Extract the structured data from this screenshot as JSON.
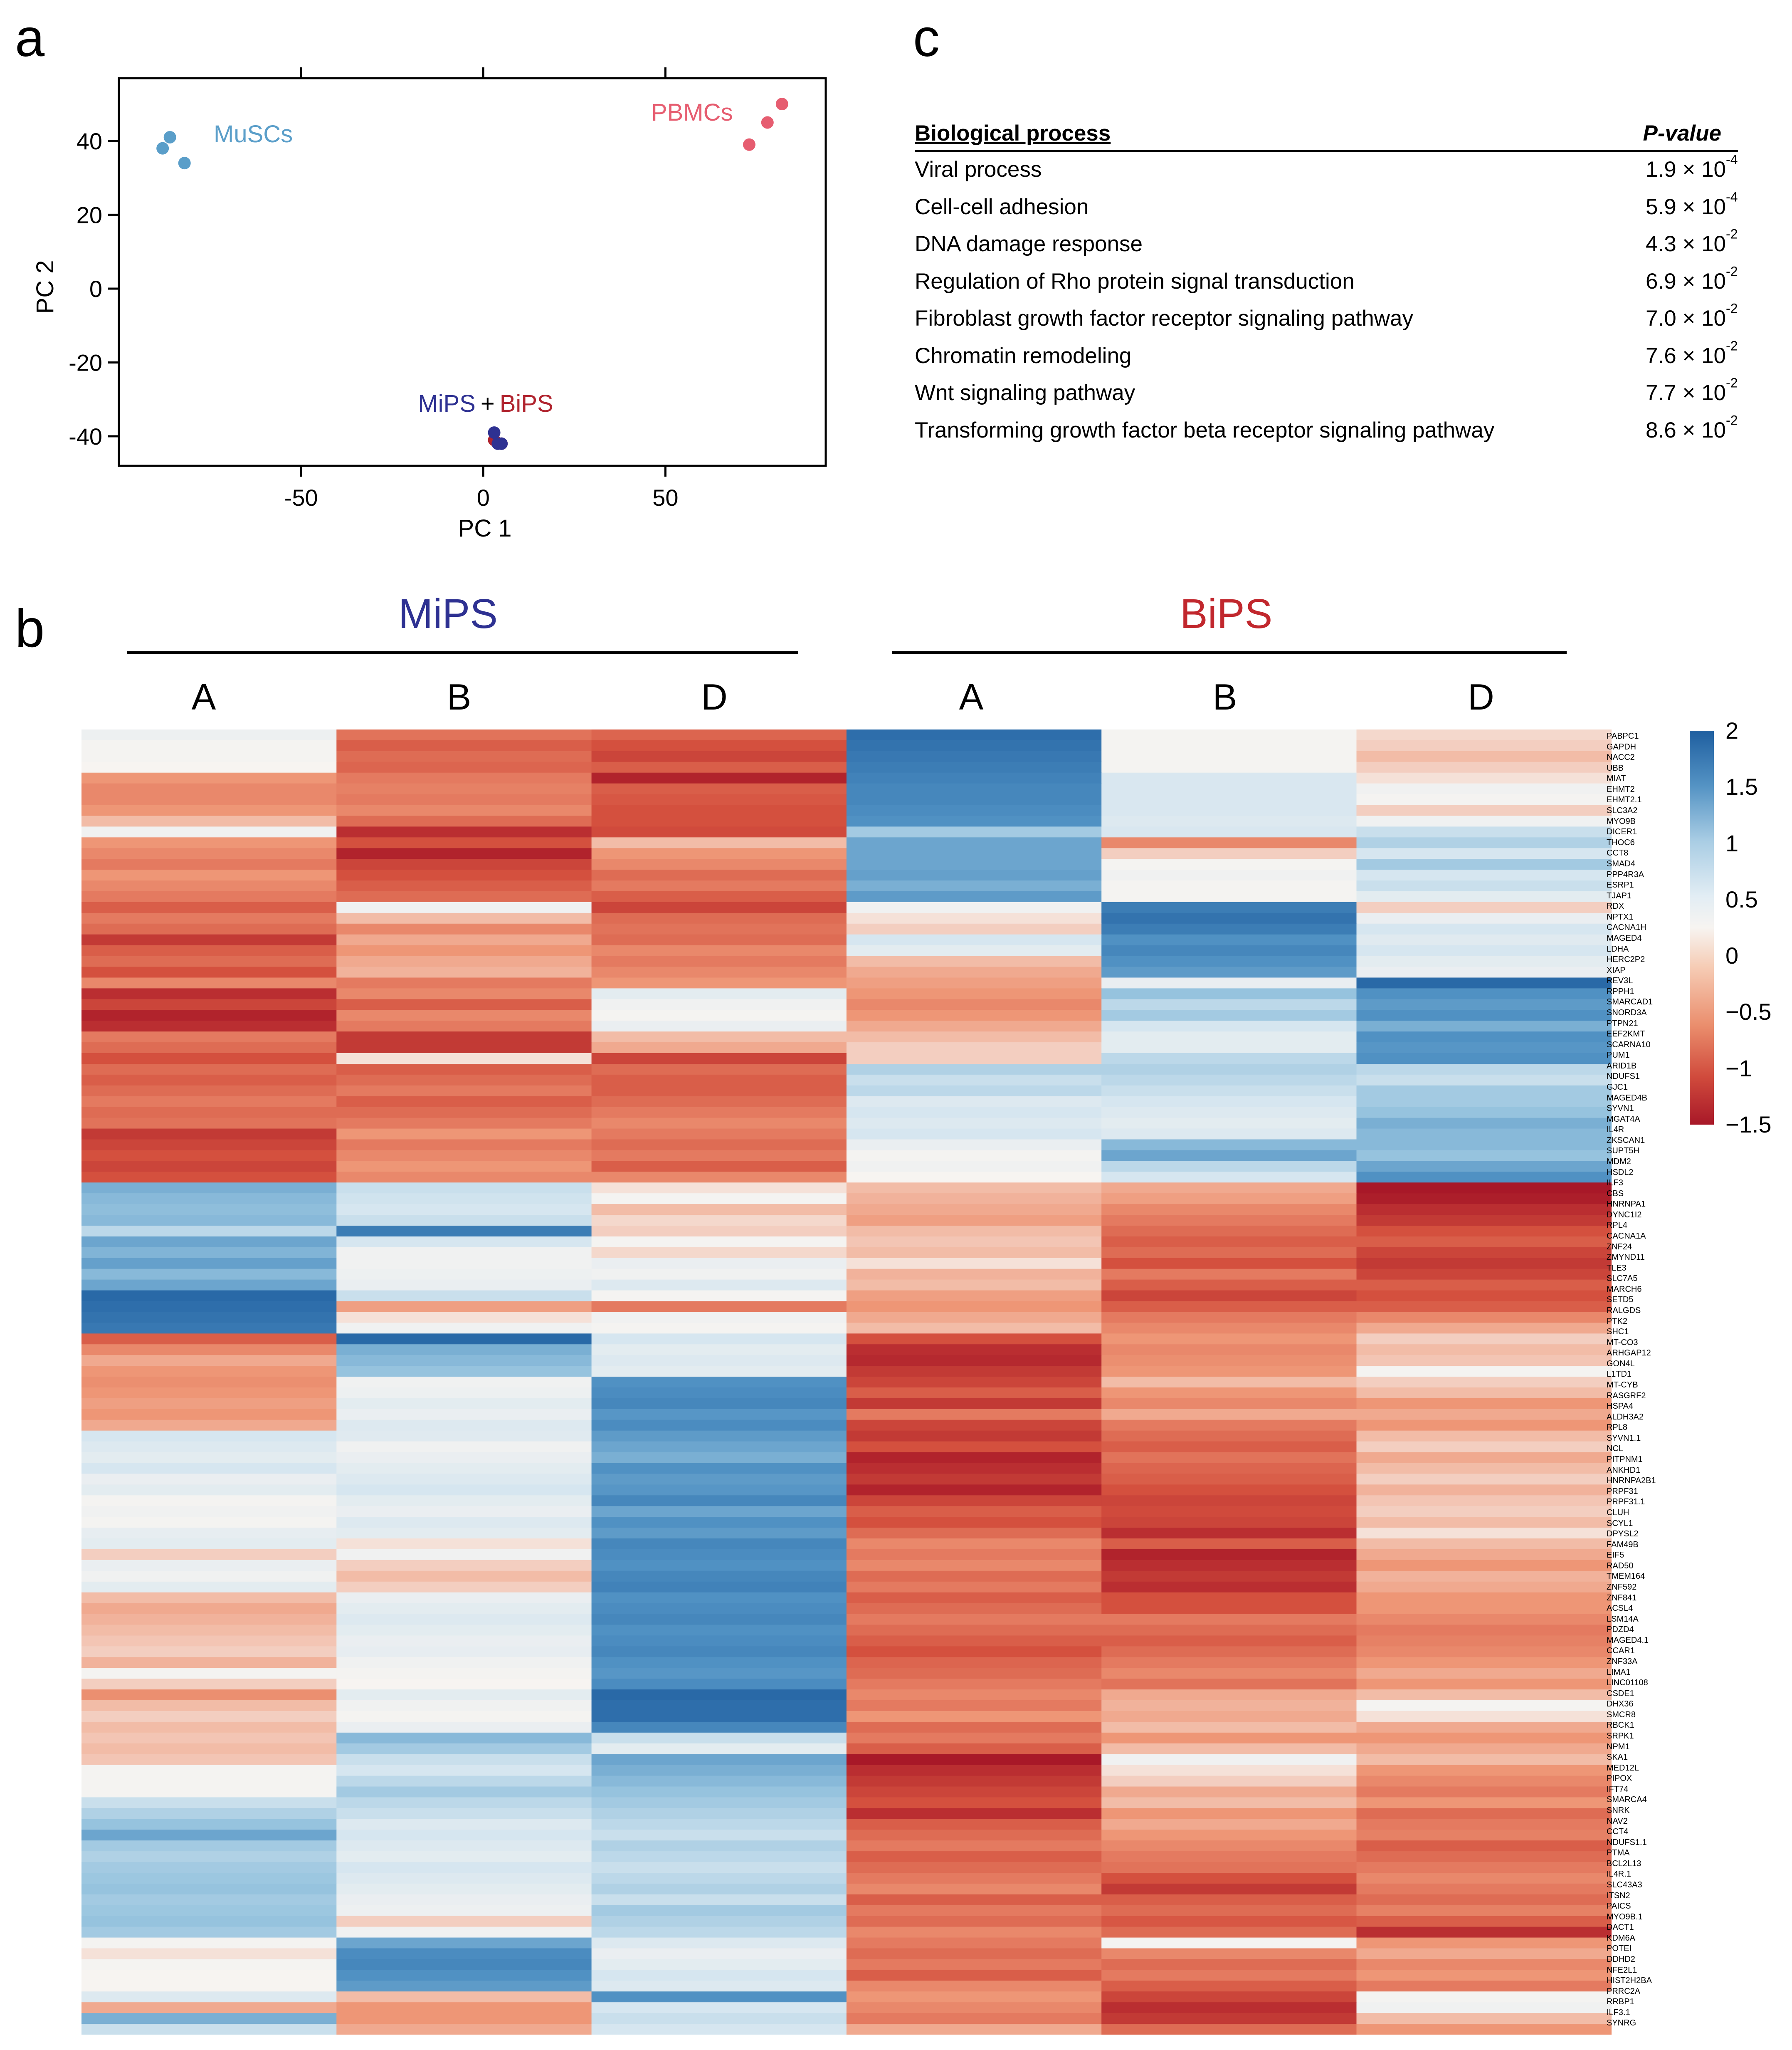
{
  "panels": {
    "a": "a",
    "b": "b",
    "c": "c"
  },
  "pca": {
    "chart_data": {
      "type": "scatter",
      "xlabel": "PC 1",
      "ylabel": "PC 2",
      "xlim": [
        -100,
        94
      ],
      "ylim": [
        -48,
        57
      ],
      "xticks": [
        -50,
        0,
        50
      ],
      "yticks": [
        40,
        20,
        0,
        -20,
        -40
      ],
      "series": [
        {
          "name": "MuSCs",
          "color": "#5a9ec9",
          "points": [
            [
              -88,
              38
            ],
            [
              -86,
              41
            ],
            [
              -82,
              34
            ]
          ]
        },
        {
          "name": "PBMCs",
          "color": "#e65d70",
          "points": [
            [
              73,
              39
            ],
            [
              78,
              45
            ],
            [
              82,
              50
            ]
          ]
        },
        {
          "name": "BiPS",
          "color": "#b0232e",
          "points": [
            [
              3,
              -41
            ],
            [
              5,
              -42
            ]
          ]
        },
        {
          "name": "MiPS",
          "color": "#2e3192",
          "points": [
            [
              3,
              -39
            ],
            [
              4,
              -42
            ],
            [
              5,
              -42
            ]
          ]
        }
      ],
      "annotations": {
        "musc": "MuSCs",
        "pbmc": "PBMCs",
        "mips": "MiPS",
        "plus": "+",
        "bips": "BiPS"
      }
    }
  },
  "go_table": {
    "header_process": "Biological process",
    "header_pvalue": "P-value",
    "rows": [
      {
        "name": "Viral process",
        "mant": "1.9 × 10",
        "exp": "-4"
      },
      {
        "name": "Cell-cell adhesion",
        "mant": "5.9 × 10",
        "exp": "-4"
      },
      {
        "name": "DNA damage response",
        "mant": "4.3 × 10",
        "exp": "-2"
      },
      {
        "name": "Regulation of Rho protein signal transduction",
        "mant": "6.9 × 10",
        "exp": "-2"
      },
      {
        "name": "Fibroblast growth factor receptor signaling pathway",
        "mant": "7.0 × 10",
        "exp": "-2"
      },
      {
        "name": "Chromatin remodeling",
        "mant": "7.6 × 10",
        "exp": "-2"
      },
      {
        "name": "Wnt signaling pathway",
        "mant": "7.7 × 10",
        "exp": "-2"
      },
      {
        "name": "Transforming growth factor beta receptor signaling pathway",
        "mant": "8.6 × 10",
        "exp": "-2"
      }
    ]
  },
  "heatmap": {
    "groups": [
      {
        "name": "MiPS",
        "color": "#2e3192"
      },
      {
        "name": "BiPS",
        "color": "#c1272d"
      }
    ],
    "columns": [
      "A",
      "B",
      "D",
      "A",
      "B",
      "D"
    ],
    "colorbar_ticks": [
      "2",
      "1.5",
      "1",
      "0.5",
      "0",
      "−0.5",
      "−1",
      "−1.5"
    ],
    "chart_data": {
      "type": "heatmap",
      "value_range": [
        -1.5,
        2
      ],
      "genes": [
        "PABPC1",
        "GAPDH",
        "NACC2",
        "UBB",
        "MIAT",
        "EHMT2",
        "EHMT2.1",
        "SLC3A2",
        "MYO9B",
        "DICER1",
        "THOC6",
        "CCT8",
        "SMAD4",
        "PPP4R3A",
        "ESRP1",
        "TJAP1",
        "RDX",
        "NPTX1",
        "CACNA1H",
        "MAGED4",
        "LDHA",
        "HERC2P2",
        "XIAP",
        "REV3L",
        "RPPH1",
        "SMARCAD1",
        "SNORD3A",
        "PTPN21",
        "EEF2KMT",
        "SCARNA10",
        "PUM1",
        "ARID1B",
        "NDUFS1",
        "GJC1",
        "MAGED4B",
        "SYVN1",
        "MGAT4A",
        "IL4R",
        "ZKSCAN1",
        "SUPT5H",
        "MDM2",
        "HSDL2",
        "ILF3",
        "CBS",
        "HNRNPA1",
        "DYNC1I2",
        "RPL4",
        "CACNA1A",
        "ZNF24",
        "ZMYND11",
        "TLE3",
        "SLC7A5",
        "MARCH6",
        "SETD5",
        "RALGDS",
        "PTK2",
        "SHC1",
        "MT-CO3",
        "ARHGAP12",
        "GON4L",
        "L1TD1",
        "MT-CYB",
        "RASGRF2",
        "HSPA4",
        "ALDH3A2",
        "RPL8",
        "SYVN1.1",
        "NCL",
        "PITPNM1",
        "ANKHD1",
        "HNRNPA2B1",
        "PRPF31",
        "PRPF31.1",
        "CLUH",
        "SCYL1",
        "DPYSL2",
        "FAM49B",
        "EIF5",
        "RAD50",
        "TMEM164",
        "ZNF592",
        "ZNF841",
        "ACSL4",
        "LSM14A",
        "PDZD4",
        "MAGED4.1",
        "CCAR1",
        "ZNF33A",
        "LIMA1",
        "LINC01108",
        "CSDE1",
        "DHX36",
        "SMCR8",
        "RBCK1",
        "SRPK1",
        "NPM1",
        "SKA1",
        "MED12L",
        "PIPOX",
        "IFT74",
        "SMARCA4",
        "SNRK",
        "NAV2",
        "CCT4",
        "NDUFS1.1",
        "PTMA",
        "BCL2L13",
        "IL4R.1",
        "SLC43A3",
        "ITSN2",
        "PAICS",
        "MYO9B.1",
        "DACT1",
        "KDM6A",
        "POTEI",
        "DDHD2",
        "NFE2L1",
        "HIST2H2BA",
        "PRRC2A",
        "RRBP1",
        "ILF3.1",
        "SYNRG"
      ],
      "values": [
        [
          0.15,
          -0.75,
          -0.85,
          1.85,
          0.05,
          -0.15
        ],
        [
          0.05,
          -0.9,
          -1.0,
          1.8,
          0.05,
          -0.2
        ],
        [
          0.05,
          -0.8,
          -1.1,
          1.75,
          0.05,
          -0.3
        ],
        [
          0.0,
          -0.85,
          -0.9,
          1.7,
          0.05,
          -0.2
        ],
        [
          -0.5,
          -0.7,
          -1.4,
          1.65,
          0.45,
          -0.1
        ],
        [
          -0.6,
          -0.65,
          -0.9,
          1.6,
          0.45,
          0.1
        ],
        [
          -0.6,
          -0.7,
          -0.95,
          1.6,
          0.45,
          0.05
        ],
        [
          -0.5,
          -0.6,
          -1.0,
          1.55,
          0.45,
          -0.2
        ],
        [
          -0.3,
          -0.8,
          -1.0,
          1.5,
          0.4,
          0.1
        ],
        [
          0.1,
          -1.3,
          -1.05,
          0.9,
          0.45,
          0.6
        ],
        [
          -0.5,
          -1.0,
          -0.3,
          1.3,
          -0.6,
          0.8
        ],
        [
          -0.6,
          -1.4,
          -0.5,
          1.3,
          -0.2,
          0.5
        ],
        [
          -0.7,
          -1.1,
          -0.6,
          1.3,
          0.05,
          0.9
        ],
        [
          -0.5,
          -1.0,
          -0.8,
          1.35,
          0.1,
          0.5
        ],
        [
          -0.6,
          -0.9,
          -0.7,
          1.2,
          0.05,
          0.6
        ],
        [
          -0.7,
          -0.8,
          -0.9,
          1.4,
          0.05,
          0.3
        ],
        [
          -0.9,
          0.1,
          -1.1,
          0.1,
          1.7,
          -0.2
        ],
        [
          -0.7,
          -0.3,
          -0.8,
          -0.1,
          1.8,
          0.2
        ],
        [
          -0.8,
          -0.6,
          -0.75,
          -0.2,
          1.7,
          0.5
        ],
        [
          -1.2,
          -0.4,
          -0.8,
          0.5,
          1.5,
          0.35
        ],
        [
          -0.9,
          -0.5,
          -0.6,
          0.3,
          1.6,
          0.5
        ],
        [
          -0.8,
          -0.4,
          -0.7,
          -0.3,
          1.5,
          0.3
        ],
        [
          -1.0,
          -0.35,
          -0.6,
          -0.4,
          1.4,
          0.2
        ],
        [
          -0.6,
          -0.7,
          -0.5,
          -0.45,
          0.2,
          1.9
        ],
        [
          -1.3,
          -0.6,
          0.3,
          -0.5,
          1.0,
          1.5
        ],
        [
          -1.1,
          -0.9,
          0.1,
          -0.6,
          0.7,
          1.4
        ],
        [
          -1.4,
          -0.6,
          0.05,
          -0.5,
          0.9,
          1.5
        ],
        [
          -1.3,
          -0.7,
          0.2,
          -0.4,
          0.5,
          1.2
        ],
        [
          -0.7,
          -1.2,
          -0.3,
          -0.3,
          0.3,
          1.5
        ],
        [
          -0.8,
          -1.2,
          -0.4,
          -0.2,
          0.3,
          1.45
        ],
        [
          -1.0,
          -0.1,
          -1.1,
          -0.2,
          0.7,
          1.5
        ],
        [
          -0.8,
          -0.9,
          -0.8,
          0.8,
          0.8,
          0.7
        ],
        [
          -0.9,
          -0.8,
          -0.9,
          0.6,
          0.7,
          0.6
        ],
        [
          -0.8,
          -0.7,
          -0.9,
          0.7,
          0.6,
          0.9
        ],
        [
          -0.7,
          -0.9,
          -0.8,
          0.4,
          0.5,
          0.9
        ],
        [
          -0.8,
          -0.8,
          -0.7,
          0.5,
          0.4,
          1.0
        ],
        [
          -0.75,
          -0.7,
          -0.6,
          0.4,
          0.3,
          1.2
        ],
        [
          -1.2,
          -0.5,
          -0.7,
          0.5,
          0.4,
          1.1
        ],
        [
          -1.1,
          -0.7,
          -0.8,
          0.2,
          1.1,
          1.1
        ],
        [
          -1.0,
          -0.6,
          -0.7,
          0.05,
          1.3,
          1.0
        ],
        [
          -1.1,
          -0.5,
          -0.9,
          0.1,
          0.7,
          1.3
        ],
        [
          -1.0,
          -0.6,
          -0.6,
          0.0,
          0.5,
          1.5
        ],
        [
          1.2,
          0.6,
          -0.1,
          -0.3,
          -0.4,
          -1.5
        ],
        [
          1.1,
          0.55,
          0.05,
          -0.35,
          -0.45,
          -1.45
        ],
        [
          1.05,
          0.5,
          -0.3,
          -0.4,
          -0.6,
          -1.3
        ],
        [
          1.1,
          0.6,
          -0.15,
          -0.45,
          -0.7,
          -1.2
        ],
        [
          0.7,
          1.7,
          -0.2,
          -0.3,
          -0.8,
          -1.0
        ],
        [
          1.3,
          0.5,
          0.05,
          -0.25,
          -0.9,
          -0.9
        ],
        [
          1.15,
          0.1,
          -0.15,
          -0.3,
          -0.8,
          -1.1
        ],
        [
          1.35,
          0.1,
          0.2,
          -0.1,
          -1.0,
          -1.2
        ],
        [
          1.1,
          0.15,
          0.1,
          -0.35,
          -0.7,
          -1.1
        ],
        [
          1.3,
          0.2,
          0.4,
          -0.3,
          -0.9,
          -0.9
        ],
        [
          1.9,
          0.6,
          0.05,
          -0.45,
          -1.1,
          -1.0
        ],
        [
          1.85,
          -0.45,
          -0.7,
          -0.5,
          -0.9,
          -0.9
        ],
        [
          1.8,
          -0.1,
          0.1,
          -0.4,
          -0.7,
          -0.6
        ],
        [
          1.75,
          0.1,
          0.05,
          -0.3,
          -0.6,
          -0.4
        ],
        [
          -0.9,
          1.9,
          0.5,
          -1.0,
          -0.5,
          -0.2
        ],
        [
          -0.6,
          1.2,
          0.3,
          -1.3,
          -0.6,
          -0.3
        ],
        [
          -0.4,
          1.1,
          0.4,
          -1.35,
          -0.55,
          -0.25
        ],
        [
          -0.5,
          1.0,
          0.3,
          -1.2,
          -0.5,
          0.05
        ],
        [
          -0.55,
          0.1,
          1.5,
          -1.1,
          -0.3,
          -0.2
        ],
        [
          -0.5,
          0.15,
          1.55,
          -0.9,
          -0.5,
          -0.3
        ],
        [
          -0.45,
          0.3,
          1.6,
          -1.2,
          -0.6,
          -0.5
        ],
        [
          -0.5,
          0.2,
          1.45,
          -0.7,
          -0.4,
          -0.4
        ],
        [
          -0.4,
          0.4,
          1.55,
          -1.1,
          -0.7,
          -0.5
        ],
        [
          0.5,
          0.35,
          1.4,
          -1.2,
          -0.8,
          -0.3
        ],
        [
          0.4,
          0.1,
          1.3,
          -1.0,
          -0.9,
          -0.2
        ],
        [
          0.3,
          0.2,
          1.2,
          -1.4,
          -0.75,
          -0.4
        ],
        [
          0.5,
          0.3,
          1.5,
          -1.3,
          -0.85,
          -0.3
        ],
        [
          0.2,
          0.4,
          1.4,
          -1.2,
          -0.9,
          -0.2
        ],
        [
          0.3,
          0.5,
          1.45,
          -1.4,
          -1.0,
          -0.35
        ],
        [
          0.05,
          0.3,
          1.6,
          -1.1,
          -1.1,
          -0.25
        ],
        [
          0.1,
          0.2,
          1.3,
          -0.9,
          -1.05,
          -0.2
        ],
        [
          0.05,
          0.4,
          1.5,
          -1.0,
          -1.1,
          -0.3
        ],
        [
          0.25,
          0.3,
          1.4,
          -0.8,
          -1.3,
          -0.1
        ],
        [
          0.3,
          -0.1,
          1.6,
          -0.6,
          -0.9,
          -0.3
        ],
        [
          -0.2,
          0.1,
          1.55,
          -0.7,
          -1.4,
          -0.4
        ],
        [
          0.2,
          -0.2,
          1.5,
          -0.6,
          -1.3,
          -0.5
        ],
        [
          0.1,
          -0.3,
          1.6,
          -0.8,
          -1.2,
          -0.35
        ],
        [
          0.3,
          -0.2,
          1.65,
          -0.7,
          -1.3,
          -0.4
        ],
        [
          -0.3,
          0.2,
          1.5,
          -0.9,
          -1.0,
          -0.5
        ],
        [
          -0.4,
          0.3,
          1.55,
          -0.8,
          -1.0,
          -0.5
        ],
        [
          -0.35,
          0.4,
          1.6,
          -0.7,
          -0.7,
          -0.6
        ],
        [
          -0.3,
          0.3,
          1.5,
          -0.8,
          -0.8,
          -0.7
        ],
        [
          -0.25,
          0.2,
          1.55,
          -0.9,
          -0.9,
          -0.65
        ],
        [
          -0.2,
          0.25,
          1.6,
          -1.0,
          -0.8,
          -0.6
        ],
        [
          -0.35,
          0.1,
          1.5,
          -0.85,
          -0.7,
          -0.5
        ],
        [
          0.05,
          0.05,
          1.45,
          -0.8,
          -0.6,
          -0.4
        ],
        [
          -0.2,
          0.0,
          1.55,
          -0.7,
          -0.75,
          -0.5
        ],
        [
          -0.55,
          0.3,
          1.9,
          -0.6,
          -0.4,
          -0.3
        ],
        [
          -0.3,
          0.1,
          1.85,
          -0.7,
          -0.35,
          0.05
        ],
        [
          -0.2,
          0.05,
          1.85,
          -0.5,
          -0.4,
          -0.1
        ],
        [
          -0.3,
          0.2,
          1.6,
          -0.8,
          -0.3,
          -0.4
        ],
        [
          -0.25,
          1.1,
          0.6,
          -0.7,
          -0.5,
          -0.5
        ],
        [
          -0.3,
          0.9,
          0.3,
          -0.9,
          -0.3,
          -0.4
        ],
        [
          -0.25,
          0.6,
          1.3,
          -1.5,
          0.1,
          -0.3
        ],
        [
          0.05,
          0.5,
          1.2,
          -1.3,
          -0.1,
          -0.5
        ],
        [
          0.05,
          0.7,
          1.1,
          -1.2,
          -0.2,
          -0.6
        ],
        [
          0.05,
          0.9,
          1.0,
          -1.1,
          -0.4,
          -0.7
        ],
        [
          0.6,
          0.7,
          0.9,
          -1.0,
          -0.3,
          -0.5
        ],
        [
          0.8,
          0.6,
          0.8,
          -1.3,
          -0.5,
          -0.8
        ],
        [
          1.0,
          0.4,
          0.7,
          -0.9,
          -0.4,
          -0.7
        ],
        [
          1.3,
          0.5,
          0.6,
          -0.8,
          -0.5,
          -0.65
        ],
        [
          0.9,
          0.4,
          0.8,
          -0.7,
          -0.6,
          -0.9
        ],
        [
          0.8,
          0.3,
          0.7,
          -0.9,
          -0.7,
          -0.8
        ],
        [
          0.9,
          0.5,
          0.6,
          -0.8,
          -0.75,
          -0.7
        ],
        [
          0.95,
          0.4,
          0.7,
          -0.7,
          -1.0,
          -0.6
        ],
        [
          1.0,
          0.3,
          0.8,
          -0.6,
          -1.2,
          -0.7
        ],
        [
          0.9,
          0.2,
          0.6,
          -0.9,
          -0.9,
          -0.8
        ],
        [
          0.95,
          0.15,
          0.9,
          -0.7,
          -0.8,
          -0.65
        ],
        [
          1.0,
          -0.2,
          0.8,
          -0.8,
          -0.95,
          -0.9
        ],
        [
          0.9,
          0.1,
          0.7,
          -0.6,
          -0.8,
          -1.3
        ],
        [
          0.05,
          1.3,
          0.4,
          -0.7,
          0.05,
          -0.5
        ],
        [
          -0.1,
          1.55,
          0.2,
          -0.8,
          -0.6,
          -0.4
        ],
        [
          0.05,
          1.6,
          0.3,
          -0.7,
          -0.8,
          -0.6
        ],
        [
          0.0,
          1.5,
          0.5,
          -0.9,
          -0.7,
          -0.5
        ],
        [
          0.0,
          1.4,
          0.4,
          -0.6,
          -0.9,
          -0.7
        ],
        [
          0.4,
          -0.3,
          1.5,
          -0.5,
          -1.1,
          0.05
        ],
        [
          -0.4,
          -0.5,
          0.5,
          -0.6,
          -1.3,
          0.1
        ],
        [
          1.2,
          -0.5,
          0.6,
          -0.7,
          -1.2,
          -0.3
        ],
        [
          0.6,
          -0.4,
          0.5,
          -0.4,
          -0.8,
          -0.5
        ]
      ]
    }
  }
}
